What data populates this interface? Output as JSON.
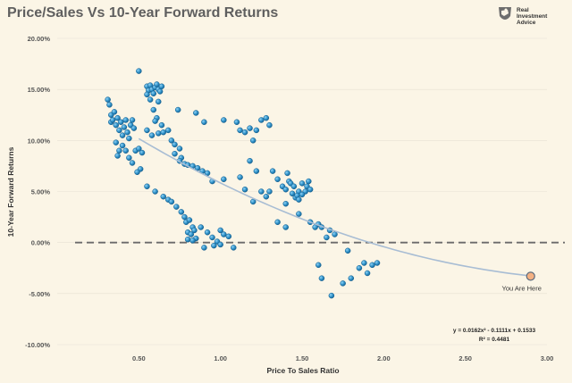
{
  "title": "Price/Sales Vs 10-Year Forward Returns",
  "brand": {
    "line1": "Real",
    "line2": "Investment",
    "line3": "Advice",
    "logo_icon": "rider-on-horse-icon"
  },
  "colors": {
    "background": "#fbf5e6",
    "point": "#2b8dc4",
    "point_edge": "#155f8f",
    "trend": "#a8bdd4",
    "zero_line": "#6b6b6b",
    "marker_fill": "#f4b183",
    "marker_edge": "#5c6b7e",
    "grid": "#e7e1d3"
  },
  "chart_data": {
    "type": "scatter",
    "title": "Price/Sales Vs 10-Year Forward Returns",
    "xlabel": "Price To Sales Ratio",
    "ylabel": "10-Year Forward Returns",
    "xlim": [
      0.0,
      3.0
    ],
    "ylim": [
      -0.1,
      0.2
    ],
    "xticks": [
      0.5,
      1.0,
      1.5,
      2.0,
      2.5,
      3.0
    ],
    "xtick_labels": [
      "0.50",
      "1.00",
      "1.50",
      "2.00",
      "2.50",
      "3.00"
    ],
    "yticks": [
      0.2,
      0.15,
      0.1,
      0.05,
      0.0,
      -0.05,
      -0.1
    ],
    "ytick_labels": [
      "20.00%",
      "15.00%",
      "10.00%",
      "5.00%",
      "0.00%",
      "-5.00%",
      "-10.00%"
    ],
    "zero_line": 0.0,
    "trendline": {
      "a": 0.0162,
      "b": -0.1111,
      "c": 0.1533,
      "x_from": 0.5,
      "x_to": 2.9
    },
    "equation": "y = 0.0162x² - 0.1111x + 0.1533",
    "r_squared": "R² = 0.4481",
    "current": {
      "x": 2.9,
      "y": -0.033,
      "label": "You Are Here"
    },
    "points": [
      [
        0.31,
        0.14
      ],
      [
        0.32,
        0.135
      ],
      [
        0.33,
        0.125
      ],
      [
        0.33,
        0.118
      ],
      [
        0.34,
        0.12
      ],
      [
        0.35,
        0.128
      ],
      [
        0.36,
        0.115
      ],
      [
        0.37,
        0.122
      ],
      [
        0.38,
        0.11
      ],
      [
        0.39,
        0.118
      ],
      [
        0.4,
        0.105
      ],
      [
        0.41,
        0.113
      ],
      [
        0.42,
        0.12
      ],
      [
        0.43,
        0.108
      ],
      [
        0.44,
        0.102
      ],
      [
        0.45,
        0.115
      ],
      [
        0.46,
        0.12
      ],
      [
        0.47,
        0.112
      ],
      [
        0.36,
        0.098
      ],
      [
        0.38,
        0.09
      ],
      [
        0.4,
        0.095
      ],
      [
        0.42,
        0.09
      ],
      [
        0.37,
        0.085
      ],
      [
        0.44,
        0.083
      ],
      [
        0.48,
        0.09
      ],
      [
        0.5,
        0.092
      ],
      [
        0.52,
        0.088
      ],
      [
        0.46,
        0.078
      ],
      [
        0.51,
        0.072
      ],
      [
        0.49,
        0.069
      ],
      [
        0.5,
        0.168
      ],
      [
        0.55,
        0.153
      ],
      [
        0.56,
        0.149
      ],
      [
        0.57,
        0.154
      ],
      [
        0.58,
        0.15
      ],
      [
        0.59,
        0.146
      ],
      [
        0.6,
        0.152
      ],
      [
        0.61,
        0.155
      ],
      [
        0.62,
        0.15
      ],
      [
        0.63,
        0.148
      ],
      [
        0.64,
        0.153
      ],
      [
        0.55,
        0.145
      ],
      [
        0.57,
        0.14
      ],
      [
        0.62,
        0.138
      ],
      [
        0.59,
        0.13
      ],
      [
        0.61,
        0.122
      ],
      [
        0.6,
        0.119
      ],
      [
        0.64,
        0.115
      ],
      [
        0.55,
        0.11
      ],
      [
        0.58,
        0.105
      ],
      [
        0.62,
        0.107
      ],
      [
        0.65,
        0.108
      ],
      [
        0.68,
        0.11
      ],
      [
        0.7,
        0.1
      ],
      [
        0.72,
        0.096
      ],
      [
        0.75,
        0.092
      ],
      [
        0.72,
        0.087
      ],
      [
        0.76,
        0.083
      ],
      [
        0.74,
        0.13
      ],
      [
        0.85,
        0.127
      ],
      [
        0.9,
        0.118
      ],
      [
        0.75,
        0.08
      ],
      [
        0.78,
        0.077
      ],
      [
        0.8,
        0.076
      ],
      [
        0.83,
        0.075
      ],
      [
        0.86,
        0.073
      ],
      [
        0.89,
        0.07
      ],
      [
        0.92,
        0.068
      ],
      [
        0.95,
        0.06
      ],
      [
        0.55,
        0.055
      ],
      [
        0.6,
        0.05
      ],
      [
        0.65,
        0.045
      ],
      [
        0.68,
        0.042
      ],
      [
        0.7,
        0.04
      ],
      [
        0.73,
        0.035
      ],
      [
        0.76,
        0.03
      ],
      [
        0.78,
        0.025
      ],
      [
        0.79,
        0.02
      ],
      [
        0.81,
        0.022
      ],
      [
        0.83,
        0.015
      ],
      [
        0.84,
        0.012
      ],
      [
        0.8,
        0.01
      ],
      [
        0.82,
        0.008
      ],
      [
        0.85,
        0.004
      ],
      [
        0.8,
        0.003
      ],
      [
        0.83,
        0.002
      ],
      [
        0.88,
        0.015
      ],
      [
        0.92,
        0.01
      ],
      [
        0.95,
        0.005
      ],
      [
        0.98,
        0.001
      ],
      [
        1.0,
        -0.002
      ],
      [
        1.02,
        0.008
      ],
      [
        1.05,
        0.006
      ],
      [
        0.9,
        -0.005
      ],
      [
        0.96,
        -0.003
      ],
      [
        1.08,
        -0.005
      ],
      [
        1.0,
        0.012
      ],
      [
        1.02,
        0.12
      ],
      [
        1.1,
        0.118
      ],
      [
        1.12,
        0.11
      ],
      [
        1.15,
        0.108
      ],
      [
        1.18,
        0.112
      ],
      [
        1.2,
        0.1
      ],
      [
        1.22,
        0.11
      ],
      [
        1.25,
        0.12
      ],
      [
        1.28,
        0.122
      ],
      [
        1.3,
        0.115
      ],
      [
        1.02,
        0.062
      ],
      [
        1.18,
        0.08
      ],
      [
        1.22,
        0.07
      ],
      [
        1.25,
        0.05
      ],
      [
        1.2,
        0.04
      ],
      [
        1.28,
        0.045
      ],
      [
        1.3,
        0.05
      ],
      [
        1.32,
        0.07
      ],
      [
        1.35,
        0.062
      ],
      [
        1.38,
        0.055
      ],
      [
        1.4,
        0.052
      ],
      [
        1.42,
        0.06
      ],
      [
        1.44,
        0.048
      ],
      [
        1.46,
        0.044
      ],
      [
        1.48,
        0.05
      ],
      [
        1.5,
        0.058
      ],
      [
        1.52,
        0.05
      ],
      [
        1.41,
        0.068
      ],
      [
        1.43,
        0.058
      ],
      [
        1.45,
        0.055
      ],
      [
        1.47,
        0.046
      ],
      [
        1.48,
        0.042
      ],
      [
        1.4,
        0.038
      ],
      [
        1.5,
        0.047
      ],
      [
        1.53,
        0.055
      ],
      [
        1.54,
        0.06
      ],
      [
        1.55,
        0.052
      ],
      [
        1.12,
        0.064
      ],
      [
        1.15,
        0.052
      ],
      [
        1.35,
        0.02
      ],
      [
        1.4,
        0.015
      ],
      [
        1.48,
        0.028
      ],
      [
        1.55,
        0.02
      ],
      [
        1.6,
        0.018
      ],
      [
        1.62,
        0.015
      ],
      [
        1.67,
        0.012
      ],
      [
        1.7,
        0.008
      ],
      [
        1.58,
        0.015
      ],
      [
        1.65,
        0.005
      ],
      [
        1.6,
        -0.022
      ],
      [
        1.62,
        -0.035
      ],
      [
        1.68,
        -0.052
      ],
      [
        1.75,
        -0.04
      ],
      [
        1.78,
        -0.008
      ],
      [
        1.8,
        -0.035
      ],
      [
        1.85,
        -0.025
      ],
      [
        1.88,
        -0.02
      ],
      [
        1.9,
        -0.03
      ],
      [
        1.93,
        -0.022
      ],
      [
        1.96,
        -0.02
      ]
    ]
  }
}
